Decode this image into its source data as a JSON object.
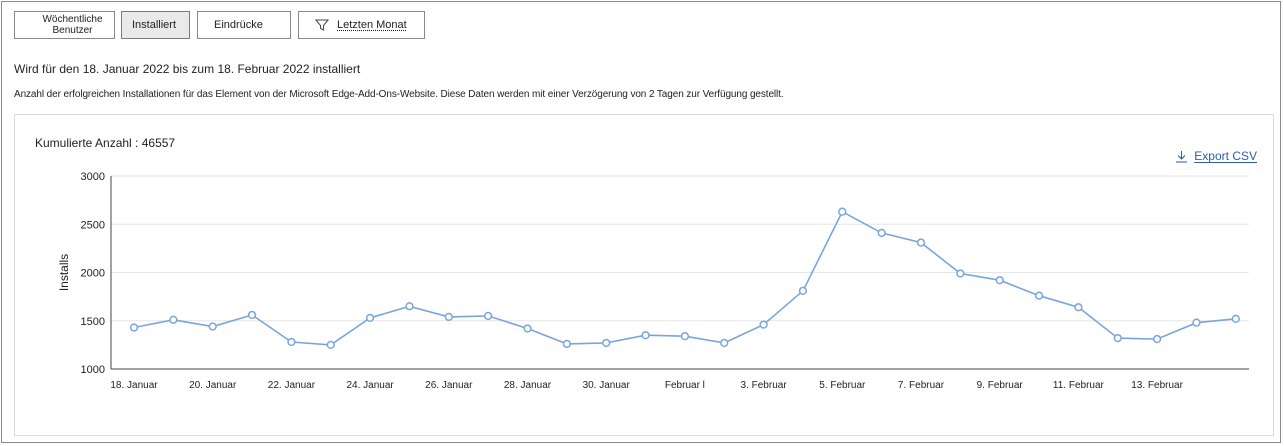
{
  "filters": {
    "weekly_users": "Wöchentliche Benutzer",
    "installed": "Installiert",
    "impressions": "Eindrücke",
    "last_month": "Letzten Monat"
  },
  "range_text": "Wird für den 18. Januar 2022 bis zum 18. Februar 2022 installiert",
  "description": "Anzahl der erfolgreichen Installationen für das Element von der Microsoft Edge-Add-Ons-Website. Diese Daten werden mit einer Verzögerung von 2 Tagen zur Verfügung gestellt.",
  "cumulative_label": "Kumulierte Anzahl : 46557",
  "export_label": "Export CSV",
  "icons": {
    "filter": "funnel-icon",
    "export": "download-icon"
  },
  "colors": {
    "line": "#7aa5dc",
    "grid": "#e6e6e6",
    "axis": "#444444",
    "link": "#2b5fa8"
  },
  "chart_data": {
    "type": "line",
    "ylabel": "Installs",
    "ylim": [
      1000,
      3000
    ],
    "yticks": [
      1000,
      1500,
      2000,
      2500,
      3000
    ],
    "x": [
      "18. Januar",
      "19. Januar",
      "20. Januar",
      "21. Januar",
      "22. Januar",
      "23. Januar",
      "24. Januar",
      "25. Januar",
      "26. Januar",
      "27. Januar",
      "28. Januar",
      "29. Januar",
      "30. Januar",
      "31. Januar",
      "1. Februar",
      "2. Februar",
      "3. Februar",
      "4. Februar",
      "5. Februar",
      "6. Februar",
      "7. Februar",
      "8. Februar",
      "9. Februar",
      "10. Februar",
      "11. Februar",
      "12. Februar",
      "13. Februar",
      "14. Februar",
      "15. Februar"
    ],
    "xtick_labels": [
      {
        "index": 0,
        "label": "18. Januar"
      },
      {
        "index": 2,
        "label": "20. Januar"
      },
      {
        "index": 4,
        "label": "22. Januar"
      },
      {
        "index": 6,
        "label": "24. Januar"
      },
      {
        "index": 8,
        "label": "26. Januar"
      },
      {
        "index": 10,
        "label": "28. Januar"
      },
      {
        "index": 12,
        "label": "30. Januar"
      },
      {
        "index": 14,
        "label": "Februar l"
      },
      {
        "index": 16,
        "label": "3. Februar"
      },
      {
        "index": 18,
        "label": "5. Februar"
      },
      {
        "index": 20,
        "label": "7. Februar"
      },
      {
        "index": 22,
        "label": "9. Februar"
      },
      {
        "index": 24,
        "label": "11. Februar"
      },
      {
        "index": 26,
        "label": "13. Februar"
      }
    ],
    "series": [
      {
        "values": [
          1430,
          1510,
          1440,
          1560,
          1280,
          1250,
          1530,
          1650,
          1540,
          1550,
          1420,
          1260,
          1270,
          1350,
          1340,
          1270,
          1460,
          1810,
          2630,
          2410,
          2310,
          1990,
          1920,
          1760,
          1640,
          1320,
          1310,
          1480,
          1520
        ]
      }
    ],
    "grid": true,
    "legend": "none"
  }
}
